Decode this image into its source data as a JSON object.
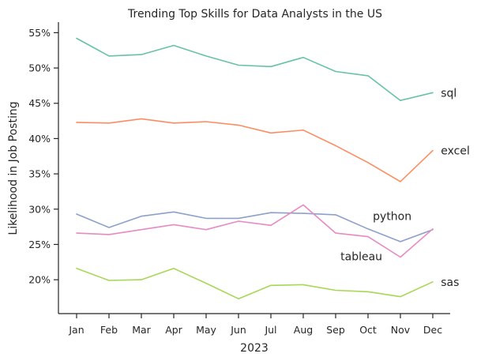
{
  "chart_data": {
    "type": "line",
    "title": "Trending Top Skills for Data Analysts in the US",
    "xlabel": "2023",
    "ylabel": "Likelihood in Job Posting",
    "categories": [
      "Jan",
      "Feb",
      "Mar",
      "Apr",
      "May",
      "Jun",
      "Jul",
      "Aug",
      "Sep",
      "Oct",
      "Nov",
      "Dec"
    ],
    "ylim": [
      15.2,
      56.5
    ],
    "yticks": [
      20,
      25,
      30,
      35,
      40,
      45,
      50,
      55
    ],
    "ytick_suffix": "%",
    "grid": false,
    "series": [
      {
        "name": "sql",
        "color": "#66c2a5",
        "values": [
          54.2,
          51.7,
          51.9,
          53.2,
          51.7,
          50.4,
          50.2,
          51.5,
          49.5,
          48.9,
          45.4,
          46.5
        ]
      },
      {
        "name": "excel",
        "color": "#fc8d62",
        "values": [
          42.3,
          42.2,
          42.8,
          42.2,
          42.4,
          41.9,
          40.8,
          41.2,
          39.0,
          36.6,
          33.9,
          38.3
        ]
      },
      {
        "name": "python",
        "color": "#8da0cb",
        "values": [
          29.3,
          27.4,
          29.0,
          29.6,
          28.7,
          28.7,
          29.5,
          29.4,
          29.2,
          27.2,
          25.4,
          27.1
        ]
      },
      {
        "name": "tableau",
        "color": "#e78ac3",
        "values": [
          26.6,
          26.4,
          27.1,
          27.8,
          27.1,
          28.3,
          27.7,
          30.6,
          26.6,
          26.1,
          23.2,
          27.2
        ]
      },
      {
        "name": "sas",
        "color": "#a6d854",
        "values": [
          21.6,
          19.9,
          20.0,
          21.6,
          19.5,
          17.3,
          19.2,
          19.3,
          18.5,
          18.3,
          17.6,
          19.7
        ]
      }
    ],
    "annotations": [
      {
        "series": "sql",
        "text": "sql",
        "x_index": 11.25,
        "y": 46.5
      },
      {
        "series": "excel",
        "text": "excel",
        "x_index": 11.25,
        "y": 38.3
      },
      {
        "series": "python",
        "text": "python",
        "x_index": 9.15,
        "y": 29.0
      },
      {
        "series": "tableau",
        "text": "tableau",
        "x_index": 8.15,
        "y": 23.3
      },
      {
        "series": "sas",
        "text": "sas",
        "x_index": 11.25,
        "y": 19.7
      }
    ]
  }
}
